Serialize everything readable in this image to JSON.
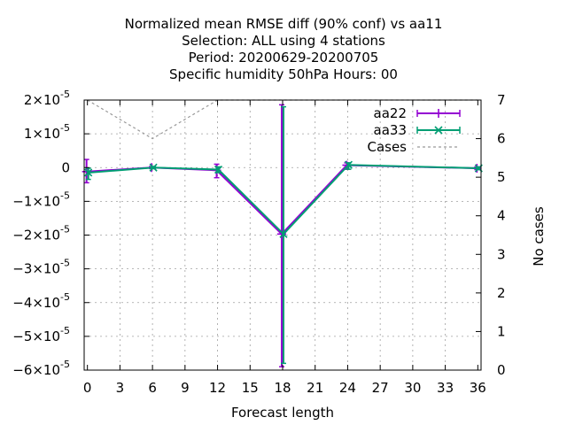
{
  "chart_data": {
    "type": "line",
    "title_lines": [
      "Normalized mean RMSE diff (90% conf) vs aa11",
      "Selection: ALL using     4 stations",
      "Period: 20200629-20200705",
      "Specific humidity 50hPa   Hours:  00"
    ],
    "xlabel": "Forecast length",
    "ylabel": "",
    "y2label": "No cases",
    "xlim": [
      -0.3,
      36.3
    ],
    "ylim": [
      -6e-05,
      2e-05
    ],
    "y2lim": [
      0,
      7
    ],
    "x_ticks": [
      "0",
      "3",
      "6",
      "9",
      "12",
      "15",
      "18",
      "21",
      "24",
      "27",
      "30",
      "33",
      "36"
    ],
    "y_ticks": [
      {
        "mant": "2×10",
        "exp": "-5"
      },
      {
        "mant": "1×10",
        "exp": "-5"
      },
      {
        "mant": "0",
        "exp": ""
      },
      {
        "mant": "−1×10",
        "exp": "-5"
      },
      {
        "mant": "−2×10",
        "exp": "-5"
      },
      {
        "mant": "−3×10",
        "exp": "-5"
      },
      {
        "mant": "−4×10",
        "exp": "-5"
      },
      {
        "mant": "−5×10",
        "exp": "-5"
      },
      {
        "mant": "−6×10",
        "exp": "-5"
      }
    ],
    "y2_ticks": [
      "7",
      "6",
      "5",
      "4",
      "3",
      "2",
      "1",
      "0"
    ],
    "grid": true,
    "legend_position": "top-right",
    "x": [
      0,
      6,
      12,
      18,
      24,
      36
    ],
    "series": [
      {
        "name": "aa22",
        "color": "#9400d3",
        "marker": "plus",
        "values": [
          -1.2e-06,
          0.0,
          -8e-07,
          -1.97e-05,
          7e-07,
          -2e-07
        ],
        "err_low": [
          -4.5e-06,
          -3e-07,
          -3e-06,
          -5.9e-05,
          -5e-07,
          -6e-07
        ],
        "err_high": [
          2.4e-06,
          3e-07,
          1e-06,
          1.86e-05,
          1.4e-06,
          2e-07
        ]
      },
      {
        "name": "aa33",
        "color": "#009e73",
        "marker": "x",
        "values": [
          -1.5e-06,
          0.0,
          -6e-07,
          -1.97e-05,
          8e-07,
          -2e-07
        ],
        "err_low": [
          -3.5e-06,
          -3e-07,
          -1.5e-06,
          -5.8e-05,
          -5e-07,
          -6e-07
        ],
        "err_high": [
          -2e-07,
          3e-07,
          2e-07,
          1.8e-05,
          1.4e-06,
          2e-07
        ]
      },
      {
        "name": "Cases",
        "color": "#999999",
        "marker": "none",
        "dashed": true,
        "axis": "y2",
        "values": [
          7,
          6,
          7,
          7,
          7,
          7
        ]
      }
    ]
  }
}
